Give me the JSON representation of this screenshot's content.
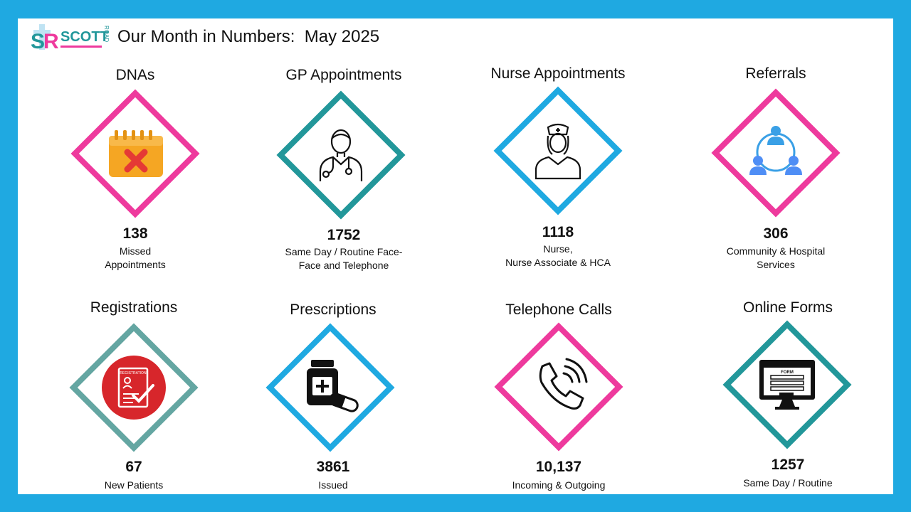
{
  "header": {
    "logo_text": "SCOTT",
    "logo_side_text": "ROAD",
    "title": "Our Month in Numbers:  May 2025"
  },
  "colors": {
    "pink": "#ee3a9d",
    "teal": "#22979a",
    "blue": "#1fa9e1",
    "sage": "#64a6a2",
    "red": "#d7262b",
    "orange": "#f5a623"
  },
  "tiles": [
    {
      "title": "DNAs",
      "value": "138",
      "desc": [
        "Missed",
        "Appointments"
      ],
      "icon": "calendar-cancel-icon"
    },
    {
      "title": "GP Appointments",
      "value": "1752",
      "desc": [
        "Same Day / Routine Face-",
        "Face and Telephone"
      ],
      "icon": "doctor-icon"
    },
    {
      "title": "Nurse Appointments",
      "value": "1118",
      "desc": [
        "Nurse,",
        "Nurse Associate & HCA"
      ],
      "icon": "nurse-icon"
    },
    {
      "title": "Referrals",
      "value": "306",
      "desc": [
        "Community & Hospital",
        "Services"
      ],
      "icon": "referral-network-icon"
    },
    {
      "title": "Registrations",
      "value": "67",
      "desc": [
        "New Patients",
        ""
      ],
      "icon": "registration-form-icon",
      "icon_label": "REGISTRATION"
    },
    {
      "title": "Prescriptions",
      "value": "3861",
      "desc": [
        "Issued",
        ""
      ],
      "icon": "medicine-bottle-icon"
    },
    {
      "title": "Telephone Calls",
      "value": "10,137",
      "desc": [
        "Incoming & Outgoing",
        ""
      ],
      "icon": "phone-call-icon"
    },
    {
      "title": "Online Forms",
      "value": "1257",
      "desc": [
        "Same Day / Routine",
        ""
      ],
      "icon": "online-form-icon",
      "icon_label": "FORM"
    }
  ]
}
